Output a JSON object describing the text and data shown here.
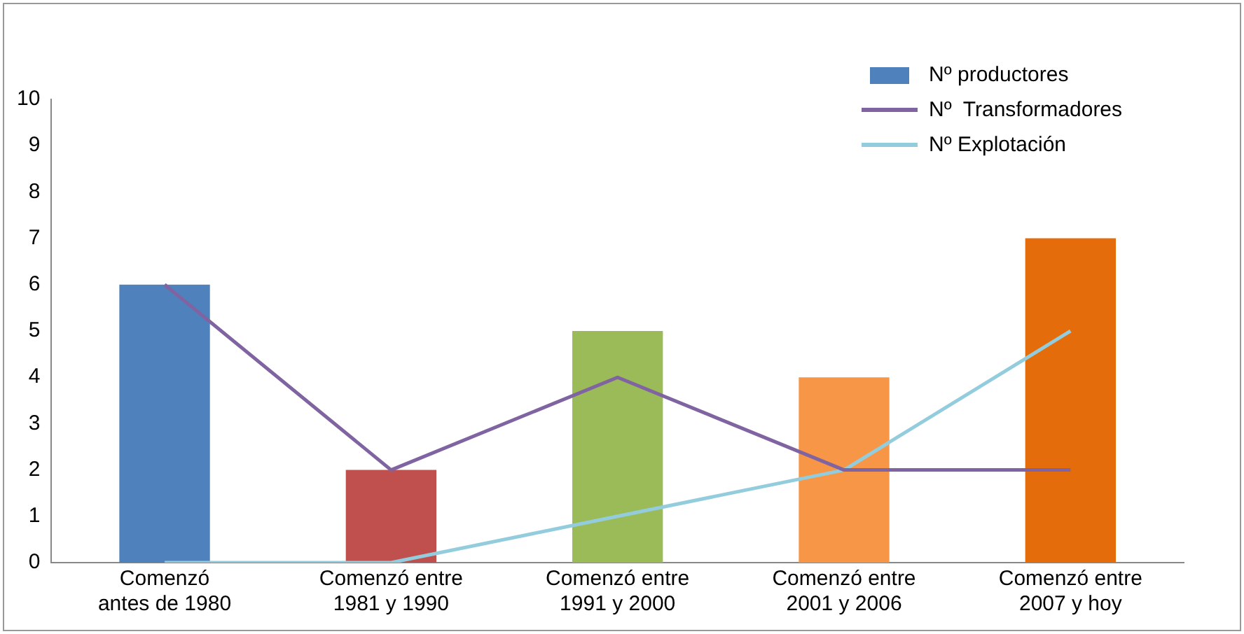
{
  "chart_data": {
    "type": "bar",
    "categories": [
      "Comenzó antes de 1980",
      "Comenzó entre 1981 y 1990",
      "Comenzó entre 1991 y 2000",
      "Comenzó entre 2001 y 2006",
      "Comenzó entre 2007 y hoy"
    ],
    "series": [
      {
        "name": "Nº productores",
        "colors": [
          "#4f81bd",
          "#c0504d",
          "#9bbb59",
          "#f79646",
          "#e46c0a"
        ],
        "values": [
          6,
          2,
          5,
          4,
          7
        ]
      },
      {
        "name": "Nº  Transformadores",
        "type": "line",
        "color": "#8064a2",
        "values": [
          6,
          2,
          4,
          2,
          2
        ]
      },
      {
        "name": "Nº Explotación",
        "type": "line",
        "color": "#93cddd",
        "values": [
          0,
          0,
          1,
          2,
          5
        ]
      }
    ],
    "ylim": [
      0,
      10
    ],
    "yticks": [
      0,
      1,
      2,
      3,
      4,
      5,
      6,
      7,
      8,
      9,
      10
    ],
    "legend": "top right",
    "marker": "none"
  }
}
